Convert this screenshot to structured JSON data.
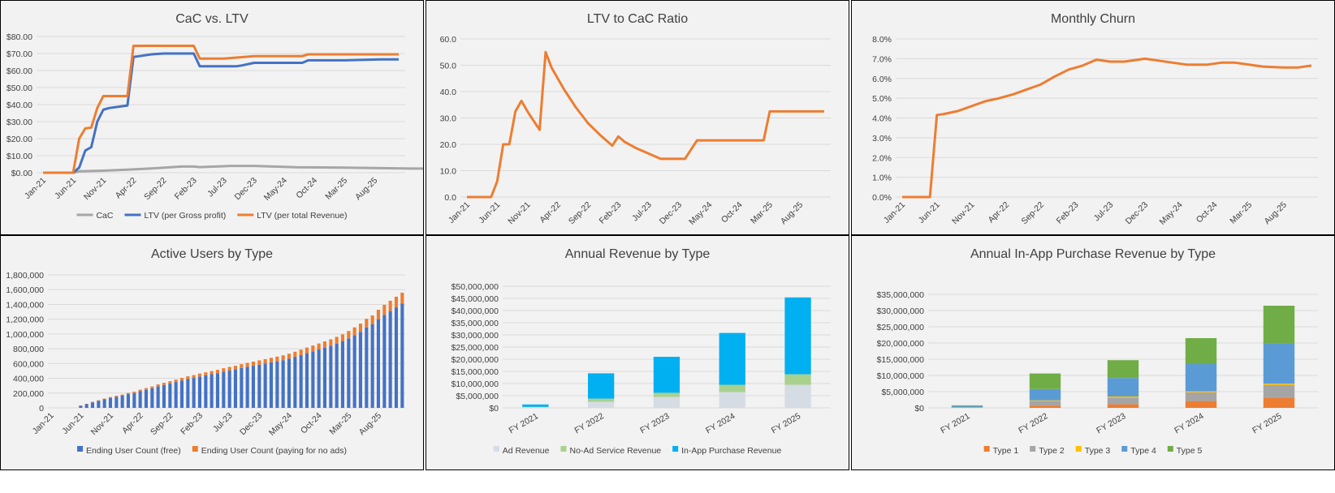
{
  "colors": {
    "gray": "#a6a6a6",
    "blue": "#4472c4",
    "orange": "#ed7d31",
    "yellow": "#ffc000",
    "green": "#70ad47",
    "skyblue": "#5b9bd5",
    "cyan": "#00b0f0",
    "lightgray": "#d6dce4",
    "lightgreen": "#a9d18e",
    "gridline": "#d9d9d9",
    "panel_bg": "#f2f2f2"
  },
  "charts": [
    {
      "chart_data": {
        "type": "line",
        "title": "CaC vs. LTV",
        "x_tick_labels": [
          "Jan-21",
          "Jun-21",
          "Nov-21",
          "Apr-22",
          "Sep-22",
          "Feb-23",
          "Jul-23",
          "Dec-23",
          "May-24",
          "Oct-24",
          "Mar-25",
          "Aug-25"
        ],
        "y_tick_labels": [
          "$0.00",
          "$10.00",
          "$20.00",
          "$30.00",
          "$40.00",
          "$50.00",
          "$60.00",
          "$70.00",
          "$80.00"
        ],
        "ylim": [
          0,
          80
        ],
        "grid": true,
        "legend_position": "bottom",
        "series": [
          {
            "name": "CaC",
            "color": "#a6a6a6",
            "x": [
              0,
              5,
              6,
              10,
              14,
              18,
              23,
              25,
              26,
              30,
              31,
              35,
              42,
              50,
              60,
              70
            ],
            "y": [
              0,
              0,
              0.8,
              1.2,
              1.8,
              2.5,
              3.6,
              3.6,
              3.3,
              3.8,
              4.0,
              4.0,
              3.2,
              3.0,
              2.5,
              2.4
            ]
          },
          {
            "name": "LTV (per Gross profit)",
            "color": "#4472c4",
            "x": [
              0,
              5,
              6,
              7,
              8,
              9,
              10,
              11,
              14,
              15,
              16,
              18,
              20,
              25,
              26,
              30,
              32,
              33,
              35,
              43,
              44,
              50,
              56,
              59
            ],
            "y": [
              0,
              0,
              3,
              13,
              15,
              30,
              37,
              38,
              39.5,
              68,
              68.5,
              69.5,
              70,
              70,
              62.5,
              62.5,
              62.5,
              63,
              64.5,
              64.5,
              66,
              66,
              66.5,
              66.5
            ]
          },
          {
            "name": "LTV (per total Revenue)",
            "color": "#ed7d31",
            "x": [
              0,
              5,
              6,
              7,
              8,
              9,
              10,
              11,
              14,
              15,
              25,
              26,
              30,
              35,
              43,
              44,
              50,
              59
            ],
            "y": [
              0,
              0,
              20,
              26,
              26.5,
              38,
              45,
              45,
              45,
              74.5,
              74.5,
              67,
              67,
              68.5,
              68.5,
              69.5,
              69.5,
              69.5
            ]
          }
        ]
      }
    },
    {
      "chart_data": {
        "type": "line",
        "title": "LTV to CaC Ratio",
        "x_tick_labels": [
          "Jan-21",
          "Jun-21",
          "Nov-21",
          "Apr-22",
          "Sep-22",
          "Feb-23",
          "Jul-23",
          "Dec-23",
          "May-24",
          "Oct-24",
          "Mar-25",
          "Aug-25"
        ],
        "y_tick_labels": [
          "0.0",
          "10.0",
          "20.0",
          "30.0",
          "40.0",
          "50.0",
          "60.0"
        ],
        "ylim": [
          0,
          60
        ],
        "grid": true,
        "series": [
          {
            "name": "",
            "color": "#ed7d31",
            "x": [
              0,
              4,
              5,
              6,
              7,
              8,
              9,
              10,
              11,
              12,
              13,
              14,
              16,
              18,
              20,
              22,
              24,
              25,
              26,
              28,
              30,
              32,
              34,
              36,
              38,
              43,
              44,
              49,
              50,
              59
            ],
            "y": [
              0,
              0,
              6,
              20,
              20,
              32.5,
              36.5,
              32.5,
              29,
              25.5,
              55,
              49,
              41,
              34,
              28,
              23.5,
              19.5,
              23,
              21,
              18.5,
              16.5,
              14.5,
              14.5,
              14.5,
              21.5,
              21.5,
              21.5,
              21.5,
              32.5,
              32.5
            ]
          }
        ]
      }
    },
    {
      "chart_data": {
        "type": "line",
        "title": "Monthly Churn",
        "x_tick_labels": [
          "Jan-21",
          "Jun-21",
          "Nov-21",
          "Apr-22",
          "Sep-22",
          "Feb-23",
          "Jul-23",
          "Dec-23",
          "May-24",
          "Oct-24",
          "Mar-25",
          "Aug-25"
        ],
        "y_tick_labels": [
          "0.0%",
          "1.0%",
          "2.0%",
          "3.0%",
          "4.0%",
          "5.0%",
          "6.0%",
          "7.0%",
          "8.0%"
        ],
        "ylim": [
          0,
          8
        ],
        "grid": true,
        "series": [
          {
            "name": "",
            "color": "#ed7d31",
            "x": [
              0,
              4,
              5,
              6,
              8,
              10,
              12,
              14,
              16,
              18,
              20,
              22,
              24,
              26,
              28,
              30,
              32,
              34,
              35,
              37,
              39,
              41,
              44,
              46,
              48,
              52,
              55,
              57,
              59
            ],
            "y": [
              0,
              0,
              4.15,
              4.2,
              4.35,
              4.6,
              4.85,
              5.0,
              5.2,
              5.45,
              5.7,
              6.1,
              6.45,
              6.65,
              6.95,
              6.85,
              6.85,
              6.95,
              7.0,
              6.9,
              6.8,
              6.7,
              6.7,
              6.8,
              6.8,
              6.6,
              6.55,
              6.55,
              6.65
            ]
          }
        ]
      }
    },
    {
      "chart_data": {
        "type": "bar",
        "stacked": true,
        "title": "Active Users by Type",
        "x_tick_labels": [
          "Jan-21",
          "Jun-21",
          "Nov-21",
          "Apr-22",
          "Sep-22",
          "Feb-23",
          "Jul-23",
          "Dec-23",
          "May-24",
          "Oct-24",
          "Mar-25",
          "Aug-25"
        ],
        "y_tick_labels": [
          "0",
          "200,000",
          "400,000",
          "600,000",
          "800,000",
          "1,000,000",
          "1,200,000",
          "1,400,000",
          "1,600,000",
          "1,800,000"
        ],
        "ylim": [
          0,
          1800000
        ],
        "grid": true,
        "legend_position": "bottom",
        "months": 60,
        "series": [
          {
            "name": "Ending User Count (free)",
            "color": "#4472c4",
            "values": [
              0,
              0,
              0,
              0,
              0,
              30000,
              50000,
              75000,
              95000,
              115000,
              135000,
              150000,
              165000,
              185000,
              200000,
              225000,
              245000,
              265000,
              290000,
              310000,
              330000,
              350000,
              370000,
              390000,
              405000,
              425000,
              440000,
              455000,
              470000,
              490000,
              505000,
              520000,
              540000,
              555000,
              570000,
              585000,
              600000,
              615000,
              630000,
              645000,
              665000,
              690000,
              715000,
              740000,
              765000,
              790000,
              815000,
              840000,
              870000,
              900000,
              940000,
              985000,
              1030000,
              1090000,
              1130000,
              1200000,
              1260000,
              1310000,
              1360000,
              1410000
            ]
          },
          {
            "name": "Ending User Count (paying for no ads)",
            "color": "#ed7d31",
            "values": [
              0,
              0,
              0,
              0,
              0,
              3000,
              5000,
              7000,
              8000,
              10000,
              12000,
              13000,
              15000,
              17000,
              19000,
              21000,
              23000,
              25000,
              27000,
              29000,
              31000,
              33000,
              35000,
              37000,
              38000,
              40000,
              41000,
              43000,
              45000,
              47000,
              49000,
              50000,
              52000,
              54000,
              56000,
              58000,
              60000,
              62000,
              64000,
              66000,
              68000,
              70000,
              73000,
              76000,
              79000,
              82000,
              85000,
              88000,
              92000,
              96000,
              100000,
              105000,
              110000,
              115000,
              120000,
              128000,
              135000,
              140000,
              145000,
              150000
            ]
          }
        ]
      }
    },
    {
      "chart_data": {
        "type": "bar",
        "stacked": true,
        "title": "Annual Revenue by Type",
        "categories": [
          "FY 2021",
          "FY 2022",
          "FY 2023",
          "FY 2024",
          "FY 2025"
        ],
        "y_tick_labels": [
          "$0",
          "$5,000,000",
          "$10,000,000",
          "$15,000,000",
          "$20,000,000",
          "$25,000,000",
          "$30,000,000",
          "$35,000,000",
          "$40,000,000",
          "$45,000,000",
          "$50,000,000"
        ],
        "ylim": [
          0,
          50000000
        ],
        "grid": true,
        "legend_position": "bottom",
        "series": [
          {
            "name": "Ad Revenue",
            "color": "#d6dce4",
            "values": [
              300000,
              2500000,
              4500000,
              6500000,
              9500000
            ]
          },
          {
            "name": "No-Ad Service Revenue",
            "color": "#a9d18e",
            "values": [
              100000,
              1300000,
              1700000,
              3000000,
              4300000
            ]
          },
          {
            "name": "In-App Purchase Revenue",
            "color": "#00b0f0",
            "values": [
              1000000,
              10400000,
              14800000,
              21300000,
              31600000
            ]
          }
        ]
      }
    },
    {
      "chart_data": {
        "type": "bar",
        "stacked": true,
        "title": "Annual In-App Purchase Revenue by Type",
        "categories": [
          "FY 2021",
          "FY 2022",
          "FY 2023",
          "FY 2024",
          "FY 2025"
        ],
        "y_tick_labels": [
          "$0",
          "$5,000,000",
          "$10,000,000",
          "$15,000,000",
          "$20,000,000",
          "$25,000,000",
          "$30,000,000",
          "$35,000,000"
        ],
        "ylim": [
          0,
          35000000
        ],
        "grid": true,
        "legend_position": "bottom",
        "series": [
          {
            "name": "Type 1",
            "color": "#ed7d31",
            "values": [
              50000,
              700000,
              1100000,
              2100000,
              3100000
            ]
          },
          {
            "name": "Type 2",
            "color": "#a5a5a5",
            "values": [
              100000,
              1400000,
              2100000,
              2700000,
              4000000
            ]
          },
          {
            "name": "Type 3",
            "color": "#ffc000",
            "values": [
              20000,
              200000,
              300000,
              300000,
              400000
            ]
          },
          {
            "name": "Type 4",
            "color": "#5b9bd5",
            "values": [
              350000,
              3500000,
              5700000,
              8400000,
              12400000
            ]
          },
          {
            "name": "Type 5",
            "color": "#70ad47",
            "values": [
              250000,
              4800000,
              5500000,
              8000000,
              11600000
            ]
          }
        ]
      }
    }
  ]
}
